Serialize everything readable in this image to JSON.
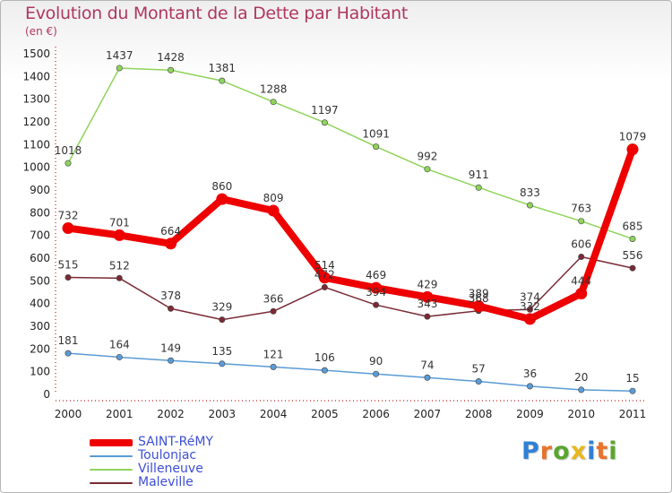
{
  "title": "Evolution du Montant de la Dette par Habitant",
  "subtitle": "(en €)",
  "logo": {
    "text": "Proxiti",
    "letter_colors": [
      "#2f7fd6",
      "#e8732a",
      "#5aa52f",
      "#e8b81e",
      "#2f7fd6",
      "#e8732a",
      "#5aa52f"
    ]
  },
  "chart_data": {
    "type": "line",
    "title": "Evolution du Montant de la Dette par Habitant",
    "subtitle": "(en €)",
    "x": [
      "2000",
      "2001",
      "2002",
      "2003",
      "2004",
      "2005",
      "2006",
      "2007",
      "2008",
      "2009",
      "2010",
      "2011"
    ],
    "ylim": [
      0,
      1500
    ],
    "yticks": [
      0,
      100,
      200,
      300,
      400,
      500,
      600,
      700,
      800,
      900,
      1000,
      1100,
      1200,
      1300,
      1400,
      1500
    ],
    "grid": false,
    "legend_position": "bottom-left",
    "series": [
      {
        "name": "SAINT-RéMY",
        "color": "#ee0000",
        "values": [
          732,
          701,
          664,
          860,
          809,
          514,
          469,
          429,
          389,
          332,
          444,
          1079
        ],
        "labels": [
          "732",
          "701",
          "664",
          "860",
          "809",
          "514",
          "469",
          "429",
          "389",
          "332",
          "444",
          "1079"
        ],
        "emphasis": true
      },
      {
        "name": "Toulonjac",
        "color": "#5b9bd5",
        "values": [
          181,
          164,
          149,
          135,
          121,
          106,
          90,
          74,
          57,
          36,
          20,
          15
        ],
        "labels": [
          "181",
          "164",
          "149",
          "135",
          "121",
          "106",
          "90",
          "74",
          "57",
          "36",
          "20",
          "15"
        ],
        "emphasis": false
      },
      {
        "name": "Villeneuve",
        "color": "#8fd45a",
        "values": [
          1018,
          1437,
          1428,
          1381,
          1288,
          1197,
          1091,
          992,
          911,
          833,
          763,
          685
        ],
        "labels": [
          "1018",
          "1437",
          "1428",
          "1381",
          "1288",
          "1197",
          "1091",
          "992",
          "911",
          "833",
          "763",
          "685"
        ],
        "emphasis": false
      },
      {
        "name": "Maleville",
        "color": "#7a2a35",
        "values": [
          515,
          512,
          378,
          329,
          366,
          472,
          394,
          343,
          368,
          374,
          606,
          556
        ],
        "labels": [
          "515",
          "512",
          "378",
          "329",
          "366",
          "472",
          "394",
          "343",
          "368",
          "374",
          "606",
          "556"
        ],
        "emphasis": false
      }
    ]
  }
}
